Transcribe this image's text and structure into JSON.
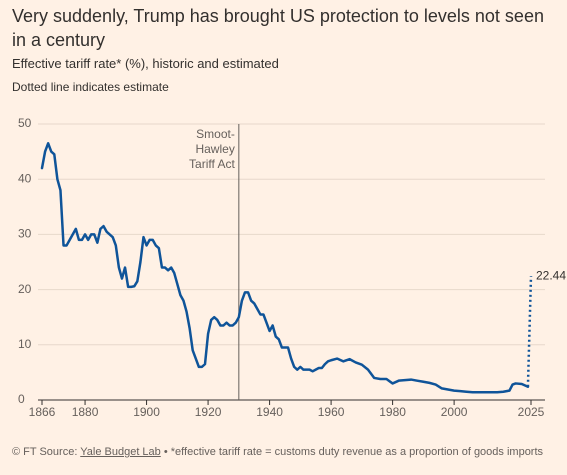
{
  "chart_data": {
    "type": "line",
    "title": "Very suddenly, Trump has brought US protection to levels not seen in a century",
    "subtitle": "Effective tariff rate* (%), historic and estimated",
    "note": "Dotted line indicates estimate",
    "xlim": [
      1866,
      2025
    ],
    "xticks": [
      1866,
      1880,
      1900,
      1920,
      1940,
      1960,
      1980,
      2000,
      2025
    ],
    "ylim": [
      0,
      50
    ],
    "yticks": [
      0,
      10,
      20,
      30,
      40,
      50
    ],
    "grid": true,
    "annotation": {
      "lines": [
        "Smoot-",
        "Hawley",
        "Tariff Act"
      ],
      "x": 1930
    },
    "series": [
      {
        "color": "#0f5499",
        "style": "solid",
        "x": [
          1866,
          1867,
          1868,
          1869,
          1870,
          1871,
          1872,
          1873,
          1874,
          1875,
          1876,
          1877,
          1878,
          1879,
          1880,
          1881,
          1882,
          1883,
          1884,
          1885,
          1886,
          1887,
          1888,
          1889,
          1890,
          1891,
          1892,
          1893,
          1894,
          1895,
          1896,
          1897,
          1898,
          1899,
          1900,
          1901,
          1902,
          1903,
          1904,
          1905,
          1906,
          1907,
          1908,
          1909,
          1910,
          1911,
          1912,
          1913,
          1914,
          1915,
          1916,
          1917,
          1918,
          1919,
          1920,
          1921,
          1922,
          1923,
          1924,
          1925,
          1926,
          1927,
          1928,
          1929,
          1930,
          1931,
          1932,
          1933,
          1934,
          1935,
          1936,
          1937,
          1938,
          1939,
          1940,
          1941,
          1942,
          1943,
          1944,
          1945,
          1946,
          1947,
          1948,
          1949,
          1950,
          1951,
          1952,
          1953,
          1954,
          1955,
          1956,
          1957,
          1958,
          1959,
          1960,
          1962,
          1964,
          1966,
          1968,
          1970,
          1972,
          1974,
          1976,
          1978,
          1980,
          1982,
          1984,
          1986,
          1988,
          1990,
          1992,
          1994,
          1996,
          1998,
          2000,
          2002,
          2004,
          2006,
          2008,
          2010,
          2012,
          2014,
          2016,
          2018,
          2019,
          2020,
          2022,
          2024
        ],
        "values": [
          42,
          45,
          46.5,
          45,
          44.5,
          40,
          38,
          28,
          28,
          29,
          30,
          31,
          29,
          29,
          30,
          29,
          30,
          30,
          28.5,
          31,
          31.5,
          30.5,
          30,
          29.5,
          28,
          24,
          22,
          24,
          20.5,
          20.5,
          20.6,
          21.5,
          25,
          29.5,
          28,
          29,
          29,
          28,
          27.5,
          24,
          24,
          23.5,
          24,
          23,
          21,
          19,
          18,
          16,
          13,
          9,
          7.5,
          6,
          6,
          6.5,
          12,
          14.5,
          15,
          14.5,
          13.5,
          13.5,
          14,
          13.5,
          13.5,
          14,
          15,
          18,
          19.5,
          19.5,
          18,
          17.5,
          16.5,
          15.5,
          15.5,
          14,
          12.5,
          13.5,
          11.5,
          11,
          9.5,
          9.5,
          9.5,
          7.5,
          6,
          5.5,
          6,
          5.5,
          5.5,
          5.5,
          5.2,
          5.5,
          5.8,
          5.8,
          6.5,
          7,
          7.2,
          7.5,
          7,
          7.4,
          6.8,
          6.4,
          5.5,
          4,
          3.8,
          3.8,
          3,
          3.5,
          3.6,
          3.7,
          3.5,
          3.3,
          3.1,
          2.8,
          2.1,
          1.9,
          1.7,
          1.6,
          1.5,
          1.4,
          1.4,
          1.4,
          1.4,
          1.4,
          1.5,
          1.7,
          2.8,
          3,
          2.9,
          2.4
        ]
      },
      {
        "color": "#0f5499",
        "style": "dotted",
        "x": [
          2024,
          2025
        ],
        "values": [
          2.4,
          22.44
        ]
      }
    ],
    "footer": {
      "copyright": "© FT",
      "source_label": "Source:",
      "source": "Yale Budget Lab",
      "separator": "•",
      "footnote": "*effective tariff rate = customs duty revenue as a proportion of goods imports"
    }
  }
}
